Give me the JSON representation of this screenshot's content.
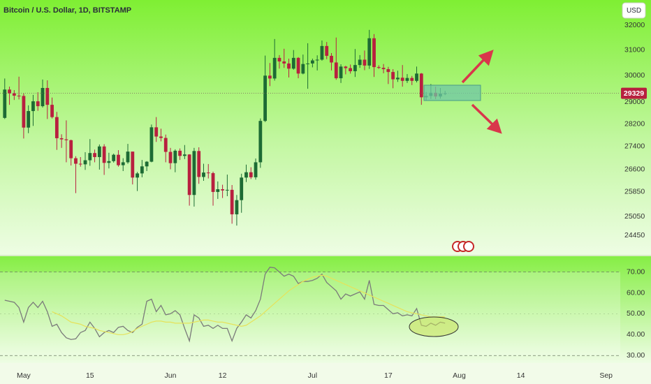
{
  "chart_data": [
    {
      "type": "candlestick",
      "title": "Bitcoin / U.S. Dollar, 1D, BITSTAMP",
      "unit": "USD",
      "x": [
        "04-27",
        "04-28",
        "04-29",
        "04-30",
        "05-01",
        "05-02",
        "05-03",
        "05-04",
        "05-05",
        "05-06",
        "05-07",
        "05-08",
        "05-09",
        "05-10",
        "05-11",
        "05-12",
        "05-13",
        "05-14",
        "05-15",
        "05-16",
        "05-17",
        "05-18",
        "05-19",
        "05-20",
        "05-21",
        "05-22",
        "05-23",
        "05-24",
        "05-25",
        "05-26",
        "05-27",
        "05-28",
        "05-29",
        "05-30",
        "05-31",
        "06-01",
        "06-02",
        "06-03",
        "06-04",
        "06-05",
        "06-06",
        "06-07",
        "06-08",
        "06-09",
        "06-10",
        "06-11",
        "06-12",
        "06-13",
        "06-14",
        "06-15",
        "06-16",
        "06-17",
        "06-18",
        "06-19",
        "06-20",
        "06-21",
        "06-22",
        "06-23",
        "06-24",
        "06-25",
        "06-26",
        "06-27",
        "06-28",
        "06-29",
        "06-30",
        "07-01",
        "07-02",
        "07-03",
        "07-04",
        "07-05",
        "07-06",
        "07-07",
        "07-08",
        "07-09",
        "07-10",
        "07-11",
        "07-12",
        "07-13",
        "07-14",
        "07-15",
        "07-16",
        "07-17",
        "07-18",
        "07-19",
        "07-20",
        "07-21",
        "07-22",
        "07-23",
        "07-24",
        "07-25",
        "07-26",
        "07-27",
        "07-28",
        "07-29"
      ],
      "open": [
        28420,
        29470,
        29330,
        29240,
        29230,
        28070,
        28670,
        29030,
        28850,
        29530,
        28900,
        28450,
        27690,
        27650,
        27620,
        26990,
        26800,
        26780,
        26920,
        27170,
        27030,
        27400,
        26830,
        26890,
        27110,
        26750,
        26850,
        27220,
        26330,
        26470,
        26710,
        26870,
        28080,
        27750,
        27700,
        27210,
        26820,
        27250,
        27070,
        27120,
        25750,
        27240,
        26350,
        26500,
        26480,
        25850,
        25940,
        25900,
        25920,
        25120,
        25580,
        26330,
        26510,
        26340,
        26850,
        28310,
        30000,
        29890,
        30690,
        30550,
        30470,
        30270,
        30690,
        30080,
        30450,
        30470,
        30590,
        30620,
        31160,
        30770,
        30510,
        29900,
        30350,
        30290,
        30170,
        30410,
        30620,
        30390,
        31470,
        30330,
        30300,
        30250,
        30140,
        29860,
        29920,
        29800,
        29910,
        29800,
        30080,
        29180,
        29230,
        29350,
        29210,
        29320
      ],
      "high": [
        29890,
        29580,
        29450,
        29960,
        29330,
        28880,
        29270,
        29370,
        29850,
        29820,
        29170,
        28640,
        27830,
        28330,
        27640,
        27060,
        27030,
        27200,
        27660,
        27290,
        27470,
        27480,
        27180,
        27150,
        27270,
        26990,
        27490,
        27220,
        26520,
        26930,
        26890,
        28180,
        28450,
        28030,
        27820,
        27350,
        27300,
        27330,
        27450,
        27130,
        27350,
        27370,
        26800,
        26790,
        26530,
        26200,
        26090,
        26430,
        26080,
        25750,
        26460,
        26770,
        26680,
        26980,
        28400,
        30780,
        30490,
        31440,
        30800,
        31050,
        30660,
        31000,
        30720,
        30820,
        31270,
        30660,
        30790,
        31380,
        31320,
        30880,
        31500,
        30440,
        30380,
        30430,
        31040,
        30800,
        30980,
        31810,
        31640,
        30400,
        30450,
        30340,
        30250,
        30190,
        30410,
        30060,
        29990,
        30350,
        30100,
        29380,
        29680,
        29580,
        29530,
        29420
      ],
      "low": [
        28380,
        28900,
        29080,
        29100,
        27680,
        27870,
        28130,
        28680,
        28800,
        28380,
        28400,
        27280,
        27350,
        26850,
        26740,
        25810,
        26700,
        26590,
        26730,
        26850,
        26600,
        26420,
        26640,
        26840,
        26700,
        26550,
        26800,
        26100,
        25880,
        26340,
        26550,
        26850,
        27560,
        27580,
        26850,
        26610,
        26510,
        26930,
        26960,
        25400,
        25370,
        26120,
        26220,
        26300,
        25400,
        25620,
        25650,
        25710,
        24820,
        24760,
        25170,
        26180,
        26280,
        26260,
        26660,
        28270,
        29600,
        29810,
        30270,
        30300,
        29930,
        30230,
        29900,
        30050,
        29500,
        30320,
        30200,
        30580,
        30640,
        30200,
        29840,
        29720,
        30050,
        30080,
        29950,
        30300,
        30210,
        30260,
        29950,
        30260,
        30090,
        29680,
        29520,
        29760,
        29580,
        29720,
        29640,
        29740,
        28900,
        29060,
        29120,
        29110,
        29130,
        29260
      ],
      "close": [
        29470,
        29330,
        29240,
        29230,
        28070,
        28670,
        29030,
        28850,
        29530,
        28900,
        28450,
        27690,
        27650,
        27620,
        26990,
        26800,
        26780,
        26920,
        27170,
        27030,
        27400,
        26830,
        26890,
        27110,
        26750,
        26850,
        27220,
        26330,
        26470,
        26710,
        26870,
        28080,
        27750,
        27700,
        27210,
        26820,
        27250,
        27070,
        27120,
        25750,
        27240,
        26350,
        26500,
        26480,
        25850,
        25940,
        25900,
        25920,
        25120,
        25580,
        26330,
        26510,
        26340,
        26850,
        28310,
        30000,
        29890,
        30690,
        30550,
        30470,
        30270,
        30690,
        30080,
        30450,
        30470,
        30590,
        30620,
        31160,
        30770,
        30510,
        29900,
        30350,
        30290,
        30170,
        30410,
        30620,
        30390,
        31470,
        30330,
        30300,
        30250,
        30140,
        29860,
        29920,
        29800,
        29910,
        29800,
        30080,
        29180,
        29230,
        29350,
        29210,
        29320,
        29329
      ],
      "up_color": "#1d6b34",
      "down_color": "#b8203f",
      "xlim": [
        "04-26",
        "09-04"
      ],
      "xticks": [
        {
          "value": "05-01",
          "label": "May"
        },
        {
          "value": "05-15",
          "label": "15"
        },
        {
          "value": "06-01",
          "label": "Jun"
        },
        {
          "value": "06-12",
          "label": "12"
        },
        {
          "value": "07-01",
          "label": "Jul"
        },
        {
          "value": "07-17",
          "label": "17"
        },
        {
          "value": "08-01",
          "label": "Aug"
        },
        {
          "value": "08-14",
          "label": "14"
        },
        {
          "value": "09-01",
          "label": "Sep"
        }
      ],
      "ylim": [
        23850,
        33050
      ],
      "log": true,
      "yticks": [
        32000,
        31000,
        30000,
        29000,
        28200,
        27400,
        26600,
        25850,
        25050,
        24450
      ],
      "grid": false
    },
    {
      "type": "line",
      "series": [
        {
          "color": "#7a7a7a",
          "values": [
            56.5,
            56,
            55.5,
            53,
            46,
            53,
            55.5,
            53,
            56,
            51,
            44,
            45,
            41,
            38.5,
            37.7,
            38,
            41,
            42,
            46,
            43,
            39,
            41,
            42,
            41,
            43.5,
            44,
            42,
            41,
            43.5,
            45,
            56,
            57,
            51,
            54,
            49.5,
            50,
            51.5,
            49.5,
            43,
            37,
            49.5,
            48,
            44,
            44.5,
            43,
            44.5,
            43,
            43,
            37,
            43,
            46,
            49.5,
            48,
            51.5,
            57,
            69,
            72.3,
            72,
            70,
            68,
            69,
            68,
            64.5,
            65.5,
            65.5,
            66,
            67,
            69,
            65,
            63,
            61,
            57,
            59.5,
            58.5,
            59.5,
            60.5,
            57,
            66,
            54.5,
            54,
            54,
            52,
            50,
            50.5,
            49,
            49.5,
            49,
            52.5,
            44.5,
            44,
            45.5,
            44.5,
            46,
            45.5
          ]
        },
        {
          "color": "#e6e25a",
          "values": [
            null,
            null,
            null,
            null,
            null,
            null,
            null,
            null,
            null,
            null,
            51,
            50,
            49,
            47.5,
            46,
            45.5,
            45,
            44,
            43.5,
            43,
            42,
            41.5,
            41,
            40.5,
            40,
            40,
            40.5,
            41.5,
            43,
            44,
            45,
            46,
            46.5,
            46.5,
            46,
            46,
            45.5,
            45.5,
            45.5,
            45.5,
            46,
            46.5,
            47,
            47,
            46.5,
            46,
            46,
            45.5,
            45,
            44.5,
            44,
            44.5,
            46,
            47.5,
            49,
            51,
            53,
            55,
            57,
            59,
            61,
            62.5,
            64,
            65.5,
            66.5,
            67.5,
            68,
            68.5,
            68,
            67,
            66,
            65,
            64,
            63,
            62,
            61,
            60,
            59,
            58,
            57,
            56,
            55,
            54,
            53,
            52,
            51,
            50.5,
            50,
            49.5,
            49,
            48.5,
            48.5,
            48.5,
            48.5
          ]
        }
      ],
      "ylim": [
        26.4,
        77.9
      ],
      "yticks": [
        {
          "value": 70,
          "label": "70.00"
        },
        {
          "value": 60,
          "label": "60.00"
        },
        {
          "value": 50,
          "label": "50.00"
        },
        {
          "value": 40,
          "label": "40.00"
        },
        {
          "value": 30,
          "label": "30.00"
        }
      ]
    }
  ]
}
